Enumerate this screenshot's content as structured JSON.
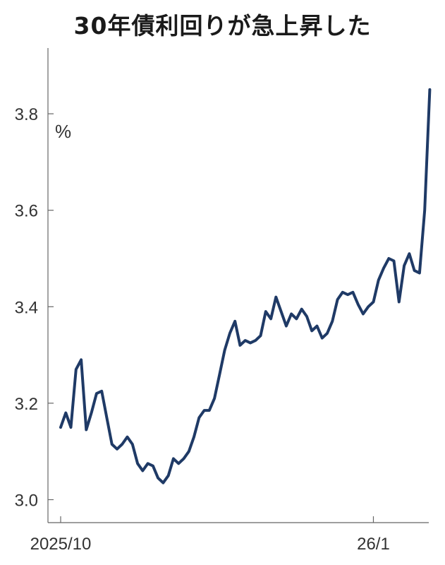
{
  "chart_data": {
    "type": "line",
    "title": "30年債利回りが急上昇した",
    "unit": "%",
    "ylim": [
      2.97,
      3.93
    ],
    "y_ticks": [
      3.0,
      3.2,
      3.4,
      3.6,
      3.8
    ],
    "y_tick_labels": [
      "3.0",
      "3.2",
      "3.4",
      "3.6",
      "3.8"
    ],
    "x_ticks": [
      {
        "label": "2025/10",
        "index": 0
      },
      {
        "label": "26/1",
        "index": 61
      }
    ],
    "line_color": "#1f3a66",
    "grid": false,
    "legend": "none",
    "series": [
      {
        "values": [
          3.15,
          3.18,
          3.15,
          3.27,
          3.29,
          3.145,
          3.18,
          3.22,
          3.225,
          3.17,
          3.115,
          3.105,
          3.115,
          3.13,
          3.115,
          3.075,
          3.06,
          3.075,
          3.07,
          3.045,
          3.035,
          3.05,
          3.085,
          3.075,
          3.085,
          3.1,
          3.13,
          3.17,
          3.185,
          3.185,
          3.21,
          3.26,
          3.31,
          3.345,
          3.37,
          3.32,
          3.33,
          3.325,
          3.33,
          3.34,
          3.39,
          3.375,
          3.42,
          3.39,
          3.36,
          3.385,
          3.375,
          3.395,
          3.38,
          3.35,
          3.36,
          3.335,
          3.345,
          3.37,
          3.415,
          3.43,
          3.425,
          3.43,
          3.405,
          3.385,
          3.4,
          3.41,
          3.455,
          3.48,
          3.5,
          3.495,
          3.41,
          3.485,
          3.51,
          3.475,
          3.47,
          3.6,
          3.85
        ]
      }
    ]
  }
}
